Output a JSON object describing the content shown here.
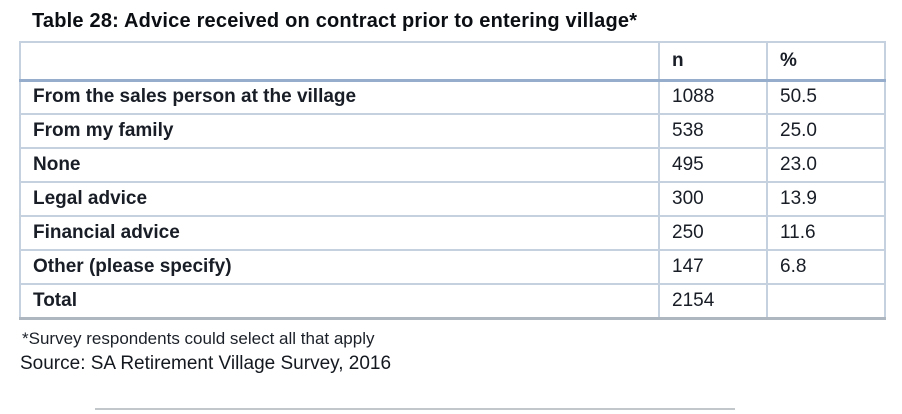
{
  "title": "Table 28: Advice received on contract prior to entering village*",
  "table": {
    "columns": {
      "label": "",
      "n": "n",
      "pct": "%"
    },
    "rows": [
      {
        "label": "From the sales person at the village",
        "n": "1088",
        "pct": "50.5"
      },
      {
        "label": "From my family",
        "n": "538",
        "pct": "25.0"
      },
      {
        "label": "None",
        "n": "495",
        "pct": "23.0"
      },
      {
        "label": "Legal advice",
        "n": "300",
        "pct": "13.9"
      },
      {
        "label": "Financial advice",
        "n": "250",
        "pct": "11.6"
      },
      {
        "label": "Other (please specify)",
        "n": "147",
        "pct": "6.8"
      },
      {
        "label": "Total",
        "n": "2154",
        "pct": ""
      }
    ]
  },
  "footnote": "*Survey respondents could select all that apply",
  "source": "Source: SA Retirement Village Survey, 2016",
  "colors": {
    "header_rule": "#96aecb",
    "grid_line": "#c5d1df",
    "outer_border": "#bccadb",
    "bottom_rule": "#aeb6bf",
    "text": "#181d26"
  }
}
